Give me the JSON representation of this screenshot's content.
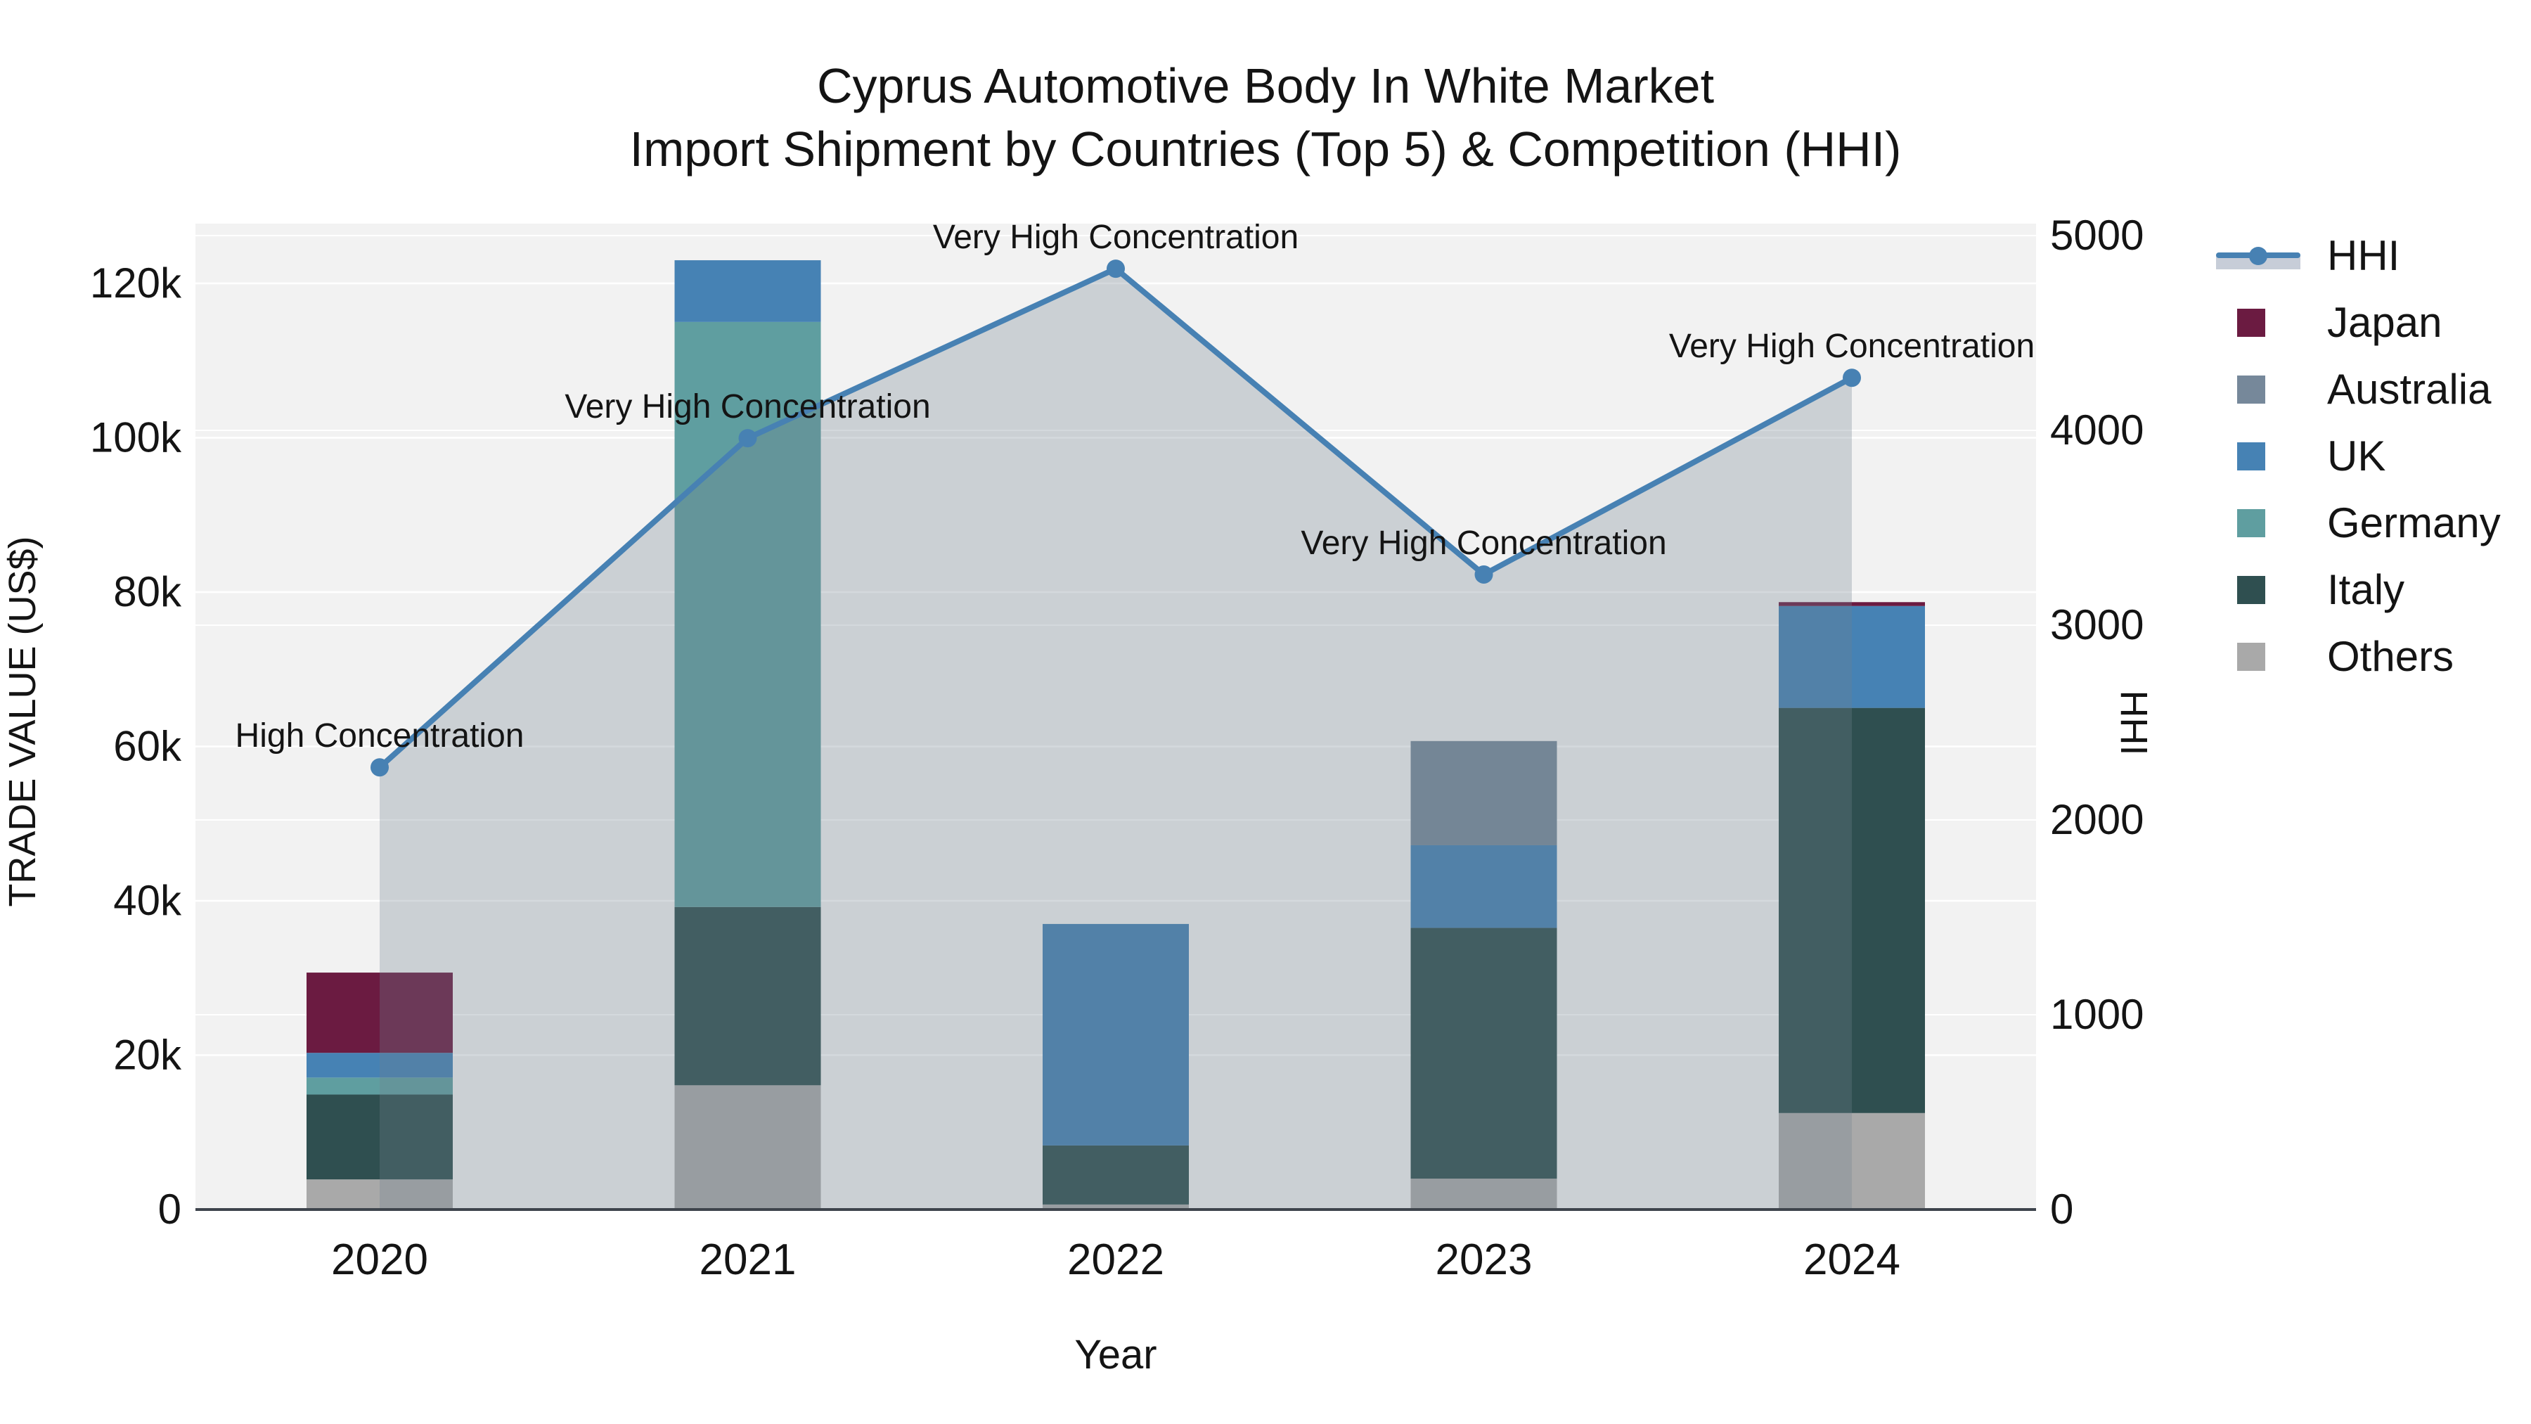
{
  "title": {
    "line1": "Cyprus Automotive Body In White Market",
    "line2": "Import Shipment by Countries (Top 5) & Competition (HHI)"
  },
  "axes": {
    "left": {
      "title": "TRADE VALUE (US$)",
      "tick_labels": [
        "0",
        "20k",
        "40k",
        "60k",
        "80k",
        "100k",
        "120k"
      ],
      "tick_values": [
        0,
        20000,
        40000,
        60000,
        80000,
        100000,
        120000
      ],
      "max": 120000
    },
    "right": {
      "title": "HHI",
      "tick_labels": [
        "0",
        "1000",
        "2000",
        "3000",
        "4000",
        "5000"
      ],
      "tick_values": [
        0,
        1000,
        2000,
        3000,
        4000,
        5000
      ],
      "max": 5000
    },
    "x": {
      "title": "Year"
    }
  },
  "legend": {
    "items": [
      {
        "label": "HHI",
        "type": "line",
        "color": "#4781b3"
      },
      {
        "label": "Japan",
        "type": "square",
        "color": "#6b1b41"
      },
      {
        "label": "Australia",
        "type": "square",
        "color": "#76889a"
      },
      {
        "label": "UK",
        "type": "square",
        "color": "#4682b4"
      },
      {
        "label": "Germany",
        "type": "square",
        "color": "#5f9ea0"
      },
      {
        "label": "Italy",
        "type": "square",
        "color": "#2f4f50"
      },
      {
        "label": "Others",
        "type": "square",
        "color": "#a9a9a9"
      }
    ]
  },
  "chart_data": {
    "type": "combo",
    "subtype": "stacked-bar + line-area (secondary axis)",
    "categories": [
      "2020",
      "2021",
      "2022",
      "2023",
      "2024"
    ],
    "bar_series": [
      {
        "name": "Others",
        "color": "#a9a9a9",
        "values": [
          3900,
          16100,
          650,
          4000,
          12500
        ]
      },
      {
        "name": "Italy",
        "color": "#2f4f50",
        "values": [
          11000,
          23100,
          7650,
          32500,
          52500
        ]
      },
      {
        "name": "Germany",
        "color": "#5f9ea0",
        "values": [
          2200,
          75800,
          0,
          0,
          0
        ]
      },
      {
        "name": "UK",
        "color": "#4682b4",
        "values": [
          3200,
          8000,
          28700,
          10700,
          13200
        ]
      },
      {
        "name": "Australia",
        "color": "#76889a",
        "values": [
          0,
          0,
          0,
          13500,
          0
        ]
      },
      {
        "name": "Japan",
        "color": "#6b1b41",
        "values": [
          10400,
          0,
          0,
          0,
          500
        ]
      }
    ],
    "bar_totals": [
      30700,
      123000,
      37200,
      60700,
      78700
    ],
    "line_series": {
      "name": "HHI",
      "values": [
        2270,
        3960,
        4830,
        3260,
        4270
      ],
      "color": "#4781b3",
      "fill": "rgba(112,128,144,0.30)",
      "axis": "right"
    },
    "annotations": [
      "High Concentration",
      "Very High Concentration",
      "Very High Concentration",
      "Very High Concentration",
      "Very High Concentration"
    ],
    "title": "Cyprus Automotive Body In White Market — Import Shipment by Countries (Top 5) & Competition (HHI)",
    "xlabel": "Year",
    "ylabel_left": "TRADE VALUE (US$)",
    "ylabel_right": "HHI",
    "ylim_left": [
      0,
      120000
    ],
    "ylim_right": [
      0,
      5000
    ],
    "grid": true,
    "legend_position": "right"
  },
  "style": {
    "plot_bg": "#f2f2f2",
    "grid_color": "#ffffff",
    "axis_line_color": "#3e444c",
    "text_color": "#141414"
  }
}
